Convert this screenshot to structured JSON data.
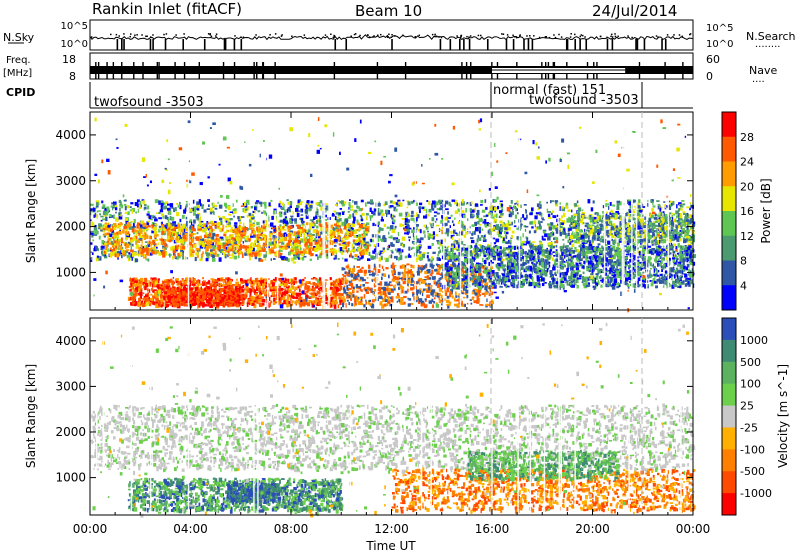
{
  "header": {
    "title": "Rankin Inlet (fitACF)",
    "beam": "Beam 10",
    "date": "24/Jul/2014"
  },
  "colors": {
    "power_scale": [
      "#0000ff",
      "#2f57a5",
      "#4b9a70",
      "#5fc653",
      "#e6e600",
      "#ff9d00",
      "#ff5a00",
      "#ff0000"
    ],
    "velocity_scale": [
      "#2b4fb8",
      "#3f8a72",
      "#5bb35f",
      "#6cd04c",
      "#c8c8c8",
      "#ffb000",
      "#ff8000",
      "#ff4a00",
      "#ff0000"
    ]
  },
  "chart_data": [
    {
      "type": "line",
      "panel": "noise",
      "left_label": "N.Sky",
      "right_label": "N.Search",
      "right_dots": "........",
      "left_ticks": [
        "10^5",
        "10^0"
      ],
      "right_ticks": [
        "10^5",
        "10^0"
      ]
    },
    {
      "type": "line",
      "panel": "frequency",
      "left_label_top": "Freq.",
      "left_label_bottom": "[MHz]",
      "right_label": "Nave",
      "right_dots": "....",
      "left_ticks": [
        "18",
        "8"
      ],
      "right_ticks": [
        "60",
        "0"
      ]
    },
    {
      "type": "table",
      "panel": "cpid",
      "label": "CPID",
      "segments": [
        {
          "start": "00:00",
          "end": "16:00",
          "text": "twofsound -3503"
        },
        {
          "start": "16:00",
          "end": "24:00",
          "text": "normal (fast) 151"
        },
        {
          "start": "17:30",
          "end": "22:00",
          "text": "twofsound -3503"
        }
      ]
    },
    {
      "type": "heatmap",
      "panel": "power",
      "ylabel": "Slant Range [km]",
      "y_ticks": [
        "1000",
        "2000",
        "3000",
        "4000"
      ],
      "ylim": [
        180,
        4500
      ],
      "colorbar_label": "Power [dB]",
      "colorbar_ticks": [
        "4",
        "8",
        "12",
        "16",
        "20",
        "24",
        "28"
      ]
    },
    {
      "type": "heatmap",
      "panel": "velocity",
      "ylabel": "Slant Range [km]",
      "y_ticks": [
        "1000",
        "2000",
        "3000",
        "4000"
      ],
      "ylim": [
        180,
        4500
      ],
      "colorbar_label": "Velocity [m s^-1]",
      "colorbar_ticks": [
        "1000",
        "500",
        "100",
        "25",
        "-25",
        "-100",
        "-500",
        "-1000"
      ]
    }
  ],
  "x_axis": {
    "label": "Time UT",
    "ticks": [
      "00:00",
      "04:00",
      "08:00",
      "12:00",
      "16:00",
      "20:00",
      "00:00"
    ]
  }
}
